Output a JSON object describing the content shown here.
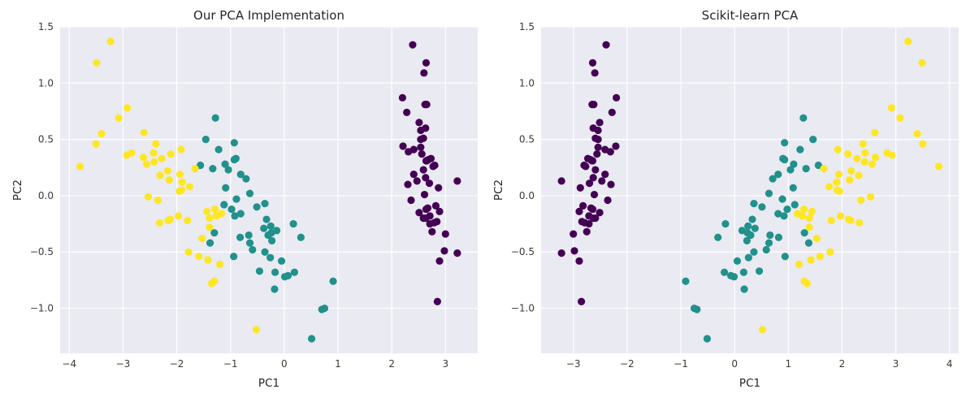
{
  "chart_data": [
    {
      "type": "scatter",
      "title": "Our PCA Implementation",
      "xlabel": "PC1",
      "ylabel": "PC2",
      "xlim": [
        -4.17,
        3.6
      ],
      "ylim": [
        -1.4,
        1.5
      ],
      "xticks": [
        -4,
        -3,
        -2,
        -1,
        0,
        1,
        2,
        3
      ],
      "xtick_labels": [
        "−4",
        "−3",
        "−2",
        "−1",
        "0",
        "1",
        "2",
        "3"
      ],
      "yticks": [
        -1.0,
        -0.5,
        0.0,
        0.5,
        1.0,
        1.5
      ],
      "ytick_labels": [
        "−1.0",
        "−0.5",
        "0.0",
        "0.5",
        "1.0",
        "1.5"
      ],
      "grid": true,
      "style": "darkgrid",
      "series": [
        {
          "color": "#440154",
          "x": [
            2.68,
            2.71,
            2.89,
            2.75,
            2.73,
            2.28,
            2.82,
            2.63,
            2.89,
            2.67,
            2.51,
            2.61,
            2.79,
            3.22,
            2.64,
            2.39,
            2.62,
            2.65,
            2.2,
            2.59,
            2.31,
            2.54,
            3.22,
            2.3,
            2.36,
            2.51,
            2.47,
            2.56,
            2.64,
            2.63,
            2.59,
            2.41,
            2.65,
            2.6,
            2.64,
            2.87,
            2.63,
            2.8,
            2.98,
            2.59,
            2.77,
            2.85,
            3.0,
            2.41,
            2.21,
            2.71,
            2.54,
            2.84,
            2.54,
            2.7
          ],
          "y": [
            0.32,
            -0.18,
            -0.14,
            -0.32,
            0.33,
            0.74,
            -0.09,
            0.16,
            -0.58,
            -0.11,
            0.65,
            0.01,
            -0.24,
            -0.51,
            1.18,
            1.34,
            0.81,
            0.31,
            0.87,
            0.51,
            0.39,
            0.43,
            0.13,
            0.1,
            -0.04,
            -0.15,
            0.13,
            0.37,
            0.31,
            -0.2,
            -0.2,
            0.41,
            0.81,
            1.09,
            -0.12,
            0.07,
            0.6,
            0.27,
            -0.49,
            0.23,
            0.26,
            -0.94,
            -0.34,
            0.19,
            0.44,
            -0.25,
            0.5,
            -0.23,
            0.58,
            0.11
          ]
        },
        {
          "color": "#21918c",
          "x": [
            -1.28,
            -0.93,
            -1.46,
            -0.18,
            -1.09,
            -0.64,
            -1.1,
            0.75,
            -1.04,
            0.01,
            0.51,
            -0.51,
            -0.26,
            -0.98,
            0.17,
            -0.93,
            -0.66,
            -0.24,
            -0.94,
            -0.05,
            -1.12,
            -0.36,
            -1.3,
            -0.92,
            -0.71,
            -0.9,
            -1.33,
            -1.56,
            -0.81,
            0.31,
            0.07,
            0.19,
            -0.14,
            -1.38,
            -0.59,
            -0.81,
            -1.22,
            -0.82,
            -0.25,
            -0.17,
            -0.46,
            -0.89,
            -0.23,
            0.7,
            -0.36,
            -0.33,
            -0.38,
            -0.64,
            0.91,
            -0.3
          ],
          "y": [
            0.69,
            0.32,
            0.5,
            -0.83,
            0.07,
            -0.42,
            0.28,
            -1.0,
            0.23,
            -0.72,
            -1.27,
            -0.1,
            -0.55,
            -0.12,
            -0.25,
            0.47,
            -0.35,
            -0.33,
            -0.54,
            -0.58,
            -0.08,
            -0.07,
            -0.33,
            -0.18,
            0.15,
            0.33,
            0.24,
            0.27,
            -0.16,
            -0.37,
            -0.71,
            -0.68,
            -0.31,
            -0.42,
            -0.48,
            0.19,
            0.41,
            -0.37,
            -0.27,
            -0.68,
            -0.67,
            -0.03,
            -0.4,
            -1.01,
            -0.5,
            -0.21,
            -0.29,
            0.02,
            -0.76,
            -0.35
          ]
        },
        {
          "color": "#fde725",
          "x": [
            -2.53,
            -1.42,
            -2.62,
            -1.97,
            -2.35,
            -3.4,
            -0.52,
            -2.93,
            -2.32,
            -2.92,
            -1.66,
            -1.8,
            -2.17,
            -1.35,
            -1.59,
            -1.9,
            -1.95,
            -3.49,
            -3.8,
            -1.3,
            -2.43,
            -1.2,
            -3.5,
            -1.39,
            -2.28,
            -2.61,
            -1.26,
            -1.29,
            -2.12,
            -2.39,
            -2.84,
            -3.23,
            -2.16,
            -1.44,
            -1.78,
            -3.08,
            -2.14,
            -1.91,
            -1.17,
            -2.11,
            -2.31,
            -1.92,
            -1.42,
            -2.56,
            -2.42,
            -1.94,
            -1.53,
            -1.76,
            -1.9,
            -1.39
          ],
          "y": [
            -0.01,
            -0.57,
            0.34,
            -0.18,
            -0.04,
            0.55,
            -1.19,
            0.36,
            -0.24,
            0.78,
            0.24,
            -0.22,
            0.22,
            -0.78,
            -0.54,
            0.12,
            0.04,
            1.18,
            0.26,
            -0.76,
            0.38,
            -0.61,
            0.46,
            -0.2,
            0.33,
            0.56,
            -0.18,
            -0.12,
            -0.21,
            0.46,
            0.38,
            1.37,
            -0.22,
            -0.14,
            -0.5,
            0.69,
            0.14,
            0.05,
            -0.16,
            0.37,
            0.18,
            0.41,
            -0.57,
            0.28,
            0.3,
            0.19,
            -0.38,
            0.08,
            0.12,
            -0.28
          ]
        }
      ]
    },
    {
      "type": "scatter",
      "title": "Scikit-learn PCA",
      "xlabel": "PC1",
      "ylabel": "PC2",
      "xlim": [
        -3.6,
        4.17
      ],
      "ylim": [
        -1.4,
        1.5
      ],
      "xticks": [
        -3,
        -2,
        -1,
        0,
        1,
        2,
        3,
        4
      ],
      "xtick_labels": [
        "−3",
        "−2",
        "−1",
        "0",
        "1",
        "2",
        "3",
        "4"
      ],
      "yticks": [
        -1.0,
        -0.5,
        0.0,
        0.5,
        1.0,
        1.5
      ],
      "ytick_labels": [
        "−1.0",
        "−0.5",
        "0.0",
        "0.5",
        "1.0",
        "1.5"
      ],
      "grid": true,
      "style": "darkgrid",
      "series": [
        {
          "color": "#440154",
          "x": [
            -2.68,
            -2.71,
            -2.89,
            -2.75,
            -2.73,
            -2.28,
            -2.82,
            -2.63,
            -2.89,
            -2.67,
            -2.51,
            -2.61,
            -2.79,
            -3.22,
            -2.64,
            -2.39,
            -2.62,
            -2.65,
            -2.2,
            -2.59,
            -2.31,
            -2.54,
            -3.22,
            -2.3,
            -2.36,
            -2.51,
            -2.47,
            -2.56,
            -2.64,
            -2.63,
            -2.59,
            -2.41,
            -2.65,
            -2.6,
            -2.64,
            -2.87,
            -2.63,
            -2.8,
            -2.98,
            -2.59,
            -2.77,
            -2.85,
            -3.0,
            -2.41,
            -2.21,
            -2.71,
            -2.54,
            -2.84,
            -2.54,
            -2.7
          ],
          "y": [
            0.32,
            -0.18,
            -0.14,
            -0.32,
            0.33,
            0.74,
            -0.09,
            0.16,
            -0.58,
            -0.11,
            0.65,
            0.01,
            -0.24,
            -0.51,
            1.18,
            1.34,
            0.81,
            0.31,
            0.87,
            0.51,
            0.39,
            0.43,
            0.13,
            0.1,
            -0.04,
            -0.15,
            0.13,
            0.37,
            0.31,
            -0.2,
            -0.2,
            0.41,
            0.81,
            1.09,
            -0.12,
            0.07,
            0.6,
            0.27,
            -0.49,
            0.23,
            0.26,
            -0.94,
            -0.34,
            0.19,
            0.44,
            -0.25,
            0.5,
            -0.23,
            0.58,
            0.11
          ]
        },
        {
          "color": "#21918c",
          "x": [
            1.28,
            0.93,
            1.46,
            0.18,
            1.09,
            0.64,
            1.1,
            -0.75,
            1.04,
            -0.01,
            -0.51,
            0.51,
            0.26,
            0.98,
            -0.17,
            0.93,
            0.66,
            0.24,
            0.94,
            0.05,
            1.12,
            0.36,
            1.3,
            0.92,
            0.71,
            0.9,
            1.33,
            1.56,
            0.81,
            -0.31,
            -0.07,
            -0.19,
            0.14,
            1.38,
            0.59,
            0.81,
            1.22,
            0.82,
            0.25,
            0.17,
            0.46,
            0.89,
            0.23,
            -0.7,
            0.36,
            0.33,
            0.38,
            0.64,
            -0.91,
            0.3
          ],
          "y": [
            0.69,
            0.32,
            0.5,
            -0.83,
            0.07,
            -0.42,
            0.28,
            -1.0,
            0.23,
            -0.72,
            -1.27,
            -0.1,
            -0.55,
            -0.12,
            -0.25,
            0.47,
            -0.35,
            -0.33,
            -0.54,
            -0.58,
            -0.08,
            -0.07,
            -0.33,
            -0.18,
            0.15,
            0.33,
            0.24,
            0.27,
            -0.16,
            -0.37,
            -0.71,
            -0.68,
            -0.31,
            -0.42,
            -0.48,
            0.19,
            0.41,
            -0.37,
            -0.27,
            -0.68,
            -0.67,
            -0.03,
            -0.4,
            -1.01,
            -0.5,
            -0.21,
            -0.29,
            0.02,
            -0.76,
            -0.35
          ]
        },
        {
          "color": "#fde725",
          "x": [
            2.53,
            1.42,
            2.62,
            1.97,
            2.35,
            3.4,
            0.52,
            2.93,
            2.32,
            2.92,
            1.66,
            1.8,
            2.17,
            1.35,
            1.59,
            1.9,
            1.95,
            3.49,
            3.8,
            1.3,
            2.43,
            1.2,
            3.5,
            1.39,
            2.28,
            2.61,
            1.26,
            1.29,
            2.12,
            2.39,
            2.84,
            3.23,
            2.16,
            1.44,
            1.78,
            3.08,
            2.14,
            1.91,
            1.17,
            2.11,
            2.31,
            1.92,
            1.42,
            2.56,
            2.42,
            1.94,
            1.53,
            1.76,
            1.9,
            1.39
          ],
          "y": [
            -0.01,
            -0.57,
            0.34,
            -0.18,
            -0.04,
            0.55,
            -1.19,
            0.36,
            -0.24,
            0.78,
            0.24,
            -0.22,
            0.22,
            -0.78,
            -0.54,
            0.12,
            0.04,
            1.18,
            0.26,
            -0.76,
            0.38,
            -0.61,
            0.46,
            -0.2,
            0.33,
            0.56,
            -0.18,
            -0.12,
            -0.21,
            0.46,
            0.38,
            1.37,
            -0.22,
            -0.14,
            -0.5,
            0.69,
            0.14,
            0.05,
            -0.16,
            0.37,
            0.18,
            0.41,
            -0.57,
            0.28,
            0.3,
            0.19,
            -0.38,
            0.08,
            0.12,
            -0.28
          ]
        }
      ]
    }
  ]
}
